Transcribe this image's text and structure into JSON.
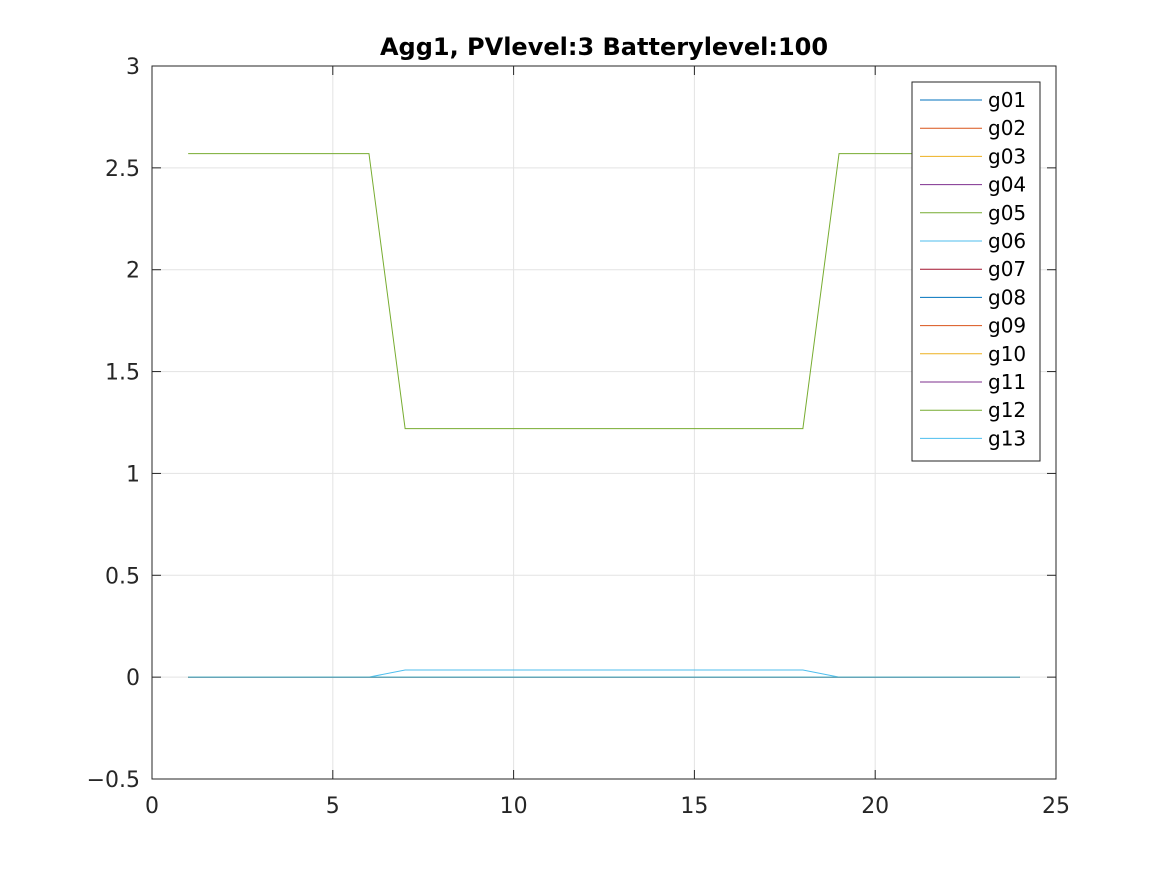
{
  "chart_data": {
    "type": "line",
    "title": "Agg1, PVlevel:3 Batterylevel:100",
    "xlabel": "",
    "ylabel": "",
    "xlim": [
      0,
      25
    ],
    "ylim": [
      -0.5,
      3
    ],
    "xticks": [
      0,
      5,
      10,
      15,
      20,
      25
    ],
    "yticks": [
      -0.5,
      0,
      0.5,
      1,
      1.5,
      2,
      2.5,
      3
    ],
    "xtick_labels": [
      "0",
      "5",
      "10",
      "15",
      "20",
      "25"
    ],
    "ytick_labels": [
      "−0.5",
      "0",
      "0.5",
      "1",
      "1.5",
      "2",
      "2.5",
      "3"
    ],
    "grid": true,
    "legend_position": "top-right",
    "x": [
      1,
      2,
      3,
      4,
      5,
      6,
      7,
      8,
      9,
      10,
      11,
      12,
      13,
      14,
      15,
      16,
      17,
      18,
      19,
      20,
      21,
      22,
      23,
      24
    ],
    "series": [
      {
        "name": "g01",
        "color": "#0072BD",
        "values": [
          0,
          0,
          0,
          0,
          0,
          0,
          0,
          0,
          0,
          0,
          0,
          0,
          0,
          0,
          0,
          0,
          0,
          0,
          0,
          0,
          0,
          0,
          0,
          0
        ]
      },
      {
        "name": "g02",
        "color": "#D95319",
        "values": [
          0,
          0,
          0,
          0,
          0,
          0,
          0,
          0,
          0,
          0,
          0,
          0,
          0,
          0,
          0,
          0,
          0,
          0,
          0,
          0,
          0,
          0,
          0,
          0
        ]
      },
      {
        "name": "g03",
        "color": "#EDB120",
        "values": [
          0,
          0,
          0,
          0,
          0,
          0,
          0,
          0,
          0,
          0,
          0,
          0,
          0,
          0,
          0,
          0,
          0,
          0,
          0,
          0,
          0,
          0,
          0,
          0
        ]
      },
      {
        "name": "g04",
        "color": "#7E2F8E",
        "values": [
          0,
          0,
          0,
          0,
          0,
          0,
          0,
          0,
          0,
          0,
          0,
          0,
          0,
          0,
          0,
          0,
          0,
          0,
          0,
          0,
          0,
          0,
          0,
          0
        ]
      },
      {
        "name": "g05",
        "color": "#77AC30",
        "values": [
          2.57,
          2.57,
          2.57,
          2.57,
          2.57,
          2.57,
          1.22,
          1.22,
          1.22,
          1.22,
          1.22,
          1.22,
          1.22,
          1.22,
          1.22,
          1.22,
          1.22,
          1.22,
          2.57,
          2.57,
          2.57,
          2.57,
          2.57,
          2.57
        ]
      },
      {
        "name": "g06",
        "color": "#4DBEEE",
        "values": [
          0,
          0,
          0,
          0,
          0,
          0,
          0.035,
          0.035,
          0.035,
          0.035,
          0.035,
          0.035,
          0.035,
          0.035,
          0.035,
          0.035,
          0.035,
          0.035,
          0,
          0,
          0,
          0,
          0,
          0
        ]
      },
      {
        "name": "g07",
        "color": "#A2142F",
        "values": [
          0,
          0,
          0,
          0,
          0,
          0,
          0,
          0,
          0,
          0,
          0,
          0,
          0,
          0,
          0,
          0,
          0,
          0,
          0,
          0,
          0,
          0,
          0,
          0
        ]
      },
      {
        "name": "g08",
        "color": "#0072BD",
        "values": [
          0,
          0,
          0,
          0,
          0,
          0,
          0,
          0,
          0,
          0,
          0,
          0,
          0,
          0,
          0,
          0,
          0,
          0,
          0,
          0,
          0,
          0,
          0,
          0
        ]
      },
      {
        "name": "g09",
        "color": "#D95319",
        "values": [
          0,
          0,
          0,
          0,
          0,
          0,
          0,
          0,
          0,
          0,
          0,
          0,
          0,
          0,
          0,
          0,
          0,
          0,
          0,
          0,
          0,
          0,
          0,
          0
        ]
      },
      {
        "name": "g10",
        "color": "#EDB120",
        "values": [
          0,
          0,
          0,
          0,
          0,
          0,
          0,
          0,
          0,
          0,
          0,
          0,
          0,
          0,
          0,
          0,
          0,
          0,
          0,
          0,
          0,
          0,
          0,
          0
        ]
      },
      {
        "name": "g11",
        "color": "#7E2F8E",
        "values": [
          0,
          0,
          0,
          0,
          0,
          0,
          0,
          0,
          0,
          0,
          0,
          0,
          0,
          0,
          0,
          0,
          0,
          0,
          0,
          0,
          0,
          0,
          0,
          0
        ]
      },
      {
        "name": "g12",
        "color": "#77AC30",
        "values": [
          0,
          0,
          0,
          0,
          0,
          0,
          0,
          0,
          0,
          0,
          0,
          0,
          0,
          0,
          0,
          0,
          0,
          0,
          0,
          0,
          0,
          0,
          0,
          0
        ]
      },
      {
        "name": "g13",
        "color": "#4DBEEE",
        "values": [
          0,
          0,
          0,
          0,
          0,
          0,
          0,
          0,
          0,
          0,
          0,
          0,
          0,
          0,
          0,
          0,
          0,
          0,
          0,
          0,
          0,
          0,
          0,
          0
        ]
      }
    ]
  }
}
